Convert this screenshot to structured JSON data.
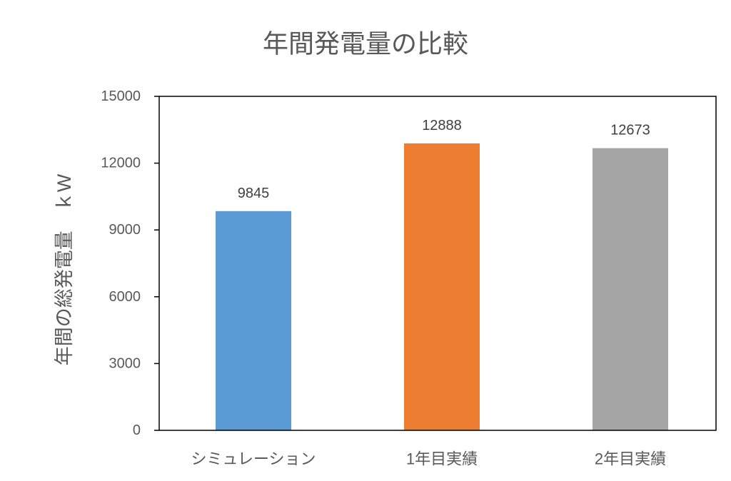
{
  "chart_data": {
    "type": "bar",
    "title": "年間発電量の比較",
    "ylabel": "年間の総発電量　ｋW",
    "categories": [
      "シミュレーション",
      "1年目実績",
      "2年目実績"
    ],
    "values": [
      9845,
      12888,
      12673
    ],
    "colors": [
      "#5B9BD5",
      "#ED7D31",
      "#A5A5A5"
    ],
    "ylim": [
      0,
      15000
    ],
    "yticks": [
      0,
      3000,
      6000,
      9000,
      12000,
      15000
    ],
    "grid": false,
    "legend": false,
    "data_labels_shown": true
  }
}
